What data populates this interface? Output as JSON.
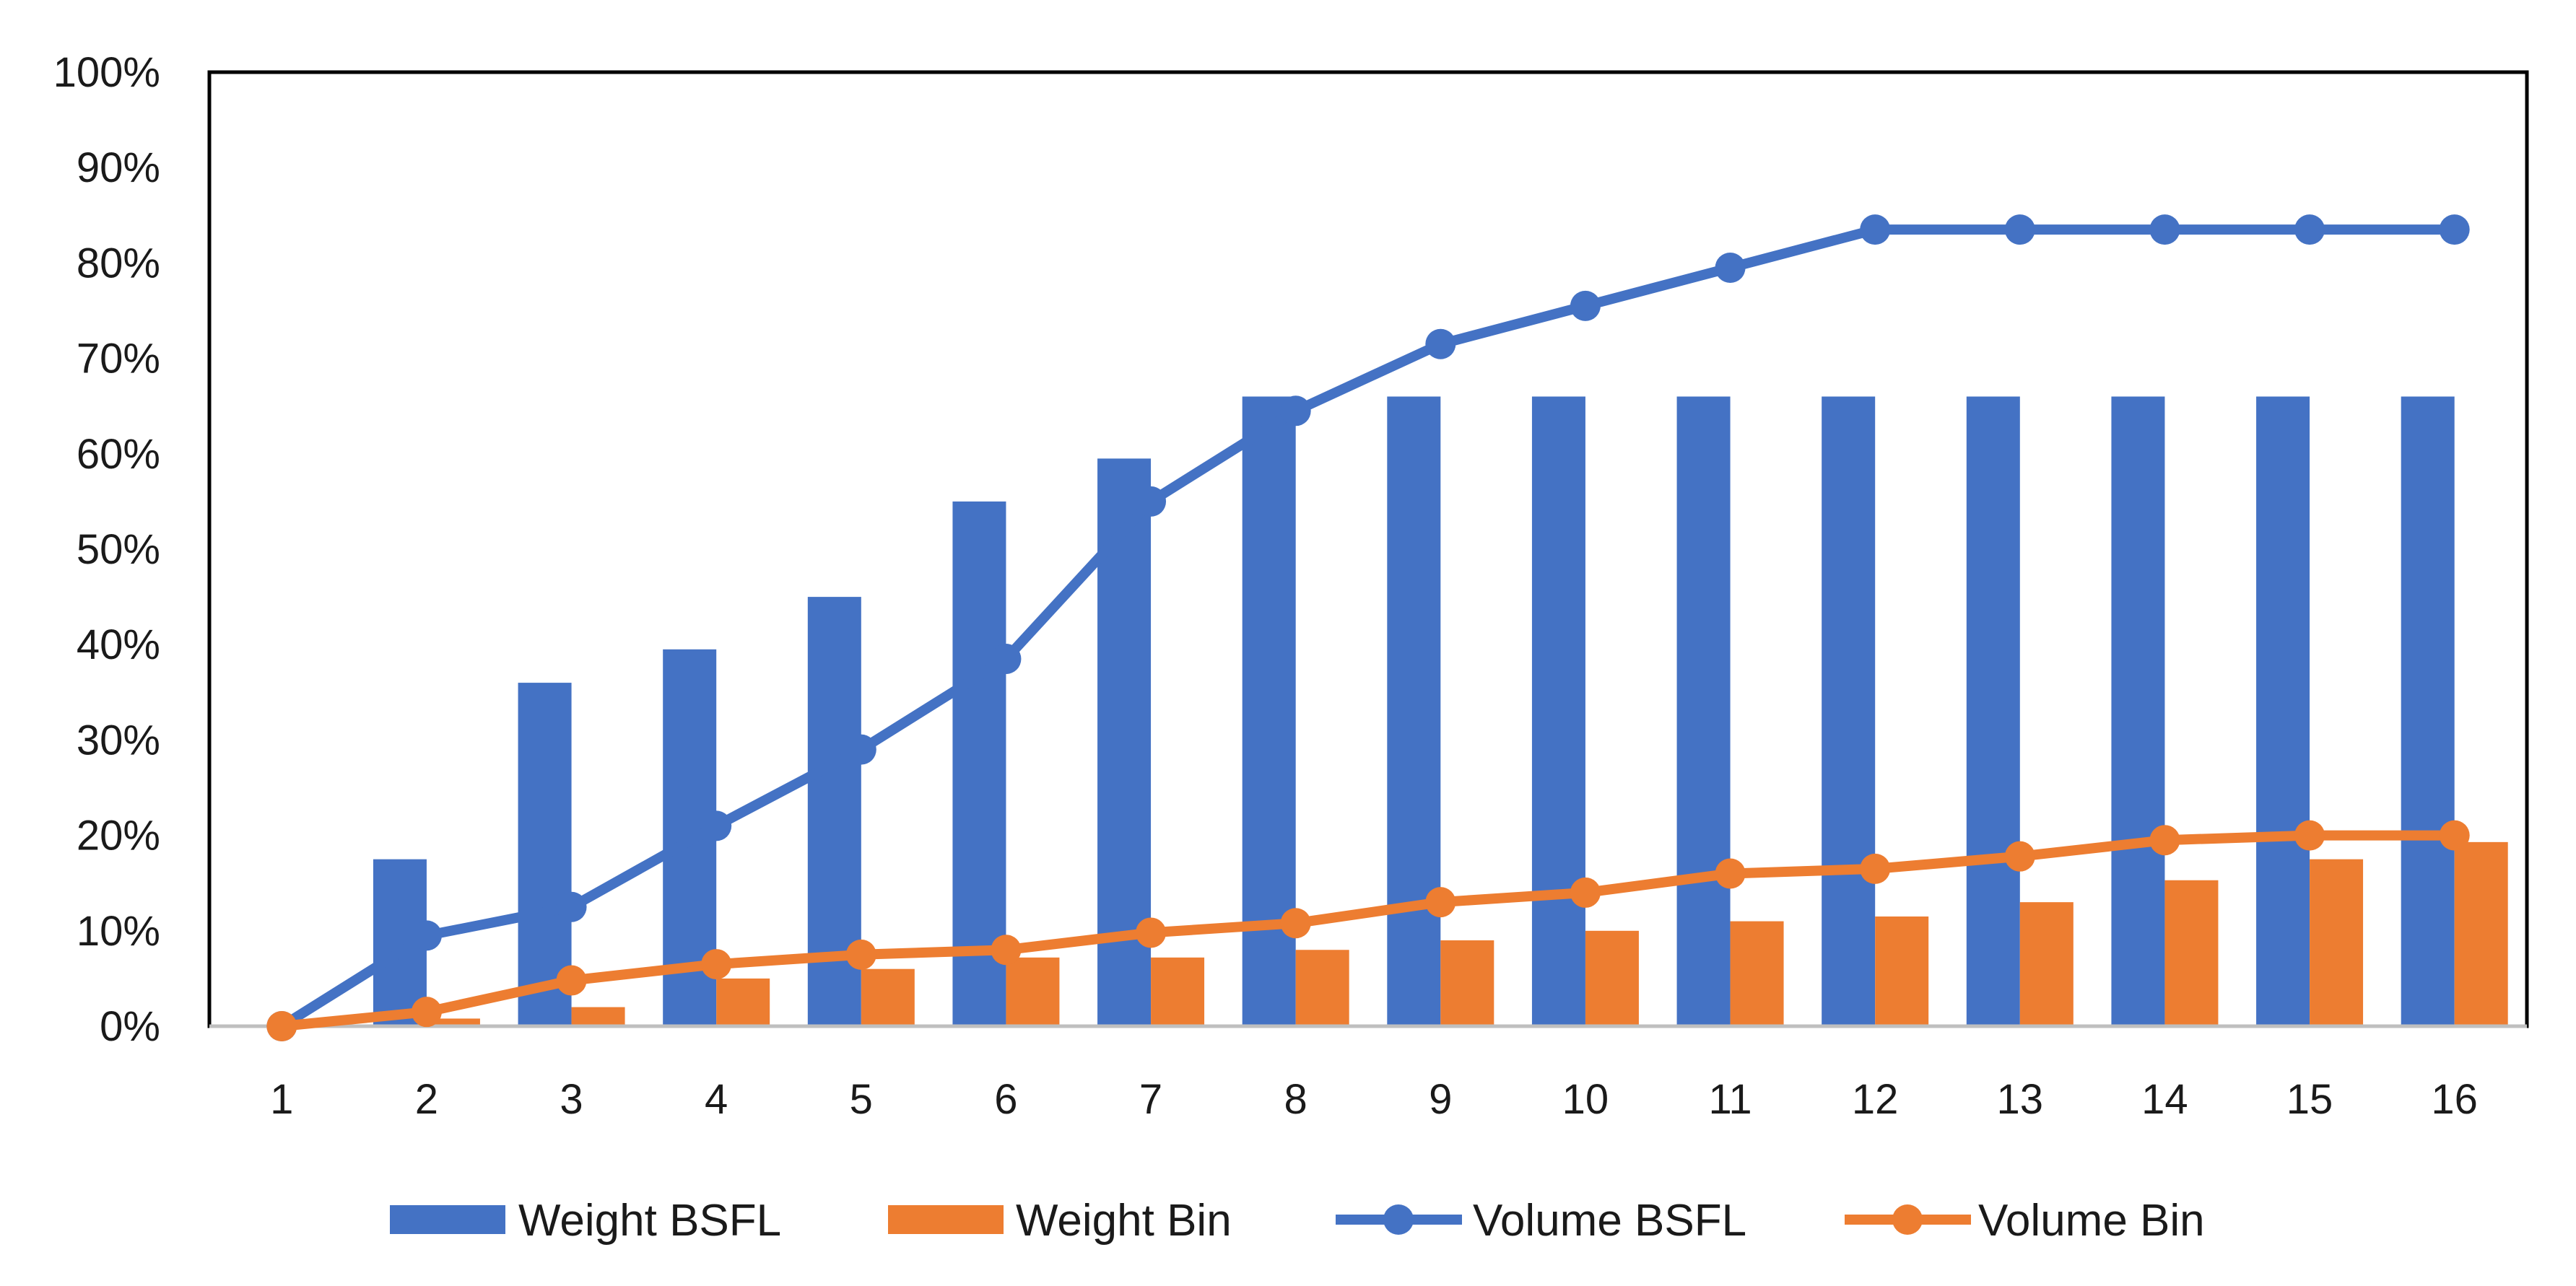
{
  "chart_data": {
    "type": "bar",
    "title": "",
    "xlabel": "",
    "ylabel": "",
    "categories": [
      "1",
      "2",
      "3",
      "4",
      "5",
      "6",
      "7",
      "8",
      "9",
      "10",
      "11",
      "12",
      "13",
      "14",
      "15",
      "16"
    ],
    "ylim": [
      0,
      100
    ],
    "y_ticks": [
      0,
      10,
      20,
      30,
      40,
      50,
      60,
      70,
      80,
      90,
      100
    ],
    "y_tick_labels": [
      "0%",
      "10%",
      "20%",
      "30%",
      "40%",
      "50%",
      "60%",
      "70%",
      "80%",
      "90%",
      "100%"
    ],
    "grid": false,
    "legend_position": "bottom",
    "series": [
      {
        "name": "Weight  BSFL",
        "type": "bar",
        "color": "#4472C4",
        "values": [
          0,
          17.5,
          36,
          39.5,
          45,
          55,
          59.5,
          66,
          66,
          66,
          66,
          66,
          66,
          66,
          66,
          66
        ]
      },
      {
        "name": "Weight Bin",
        "type": "bar",
        "color": "#ED7D31",
        "values": [
          0,
          0.8,
          2,
          5,
          6,
          7.2,
          7.2,
          8,
          9,
          10,
          11,
          11.5,
          13,
          15.3,
          17.5,
          19.3
        ]
      },
      {
        "name": "Volume  BSFL",
        "type": "line",
        "marker": "circle",
        "color": "#4472C4",
        "values": [
          0,
          9.5,
          12.5,
          21,
          29,
          38.5,
          55,
          64.5,
          71.5,
          75.5,
          79.5,
          83.5,
          83.5,
          83.5,
          83.5,
          83.5
        ]
      },
      {
        "name": "Volume Bin",
        "type": "line",
        "marker": "circle",
        "color": "#ED7D31",
        "values": [
          0,
          1.5,
          4.8,
          6.5,
          7.5,
          8,
          9.8,
          10.8,
          13,
          14,
          16,
          16.5,
          17.8,
          19.5,
          20,
          20
        ]
      }
    ]
  }
}
